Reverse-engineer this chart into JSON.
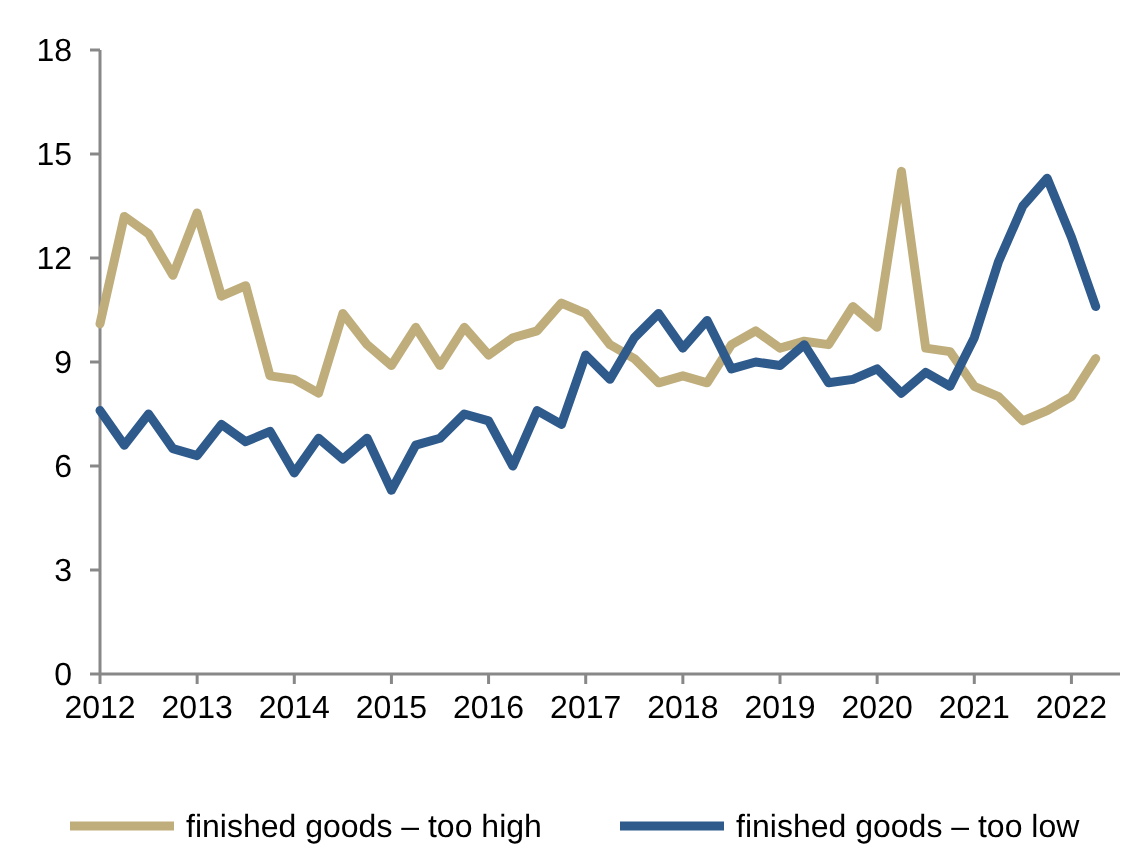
{
  "chart_data": {
    "type": "line",
    "x": [
      2012,
      2012.25,
      2012.5,
      2012.75,
      2013,
      2013.25,
      2013.5,
      2013.75,
      2014,
      2014.25,
      2014.5,
      2014.75,
      2015,
      2015.25,
      2015.5,
      2015.75,
      2016,
      2016.25,
      2016.5,
      2016.75,
      2017,
      2017.25,
      2017.5,
      2017.75,
      2018,
      2018.25,
      2018.5,
      2018.75,
      2019,
      2019.25,
      2019.5,
      2019.75,
      2020,
      2020.25,
      2020.5,
      2020.75,
      2021,
      2021.25,
      2021.5,
      2021.75,
      2022,
      2022.25
    ],
    "series": [
      {
        "name": "finished goods – too high",
        "color": "#bfae7c",
        "values": [
          10.1,
          13.2,
          12.7,
          11.5,
          13.3,
          10.9,
          11.2,
          8.6,
          8.5,
          8.1,
          10.4,
          9.5,
          8.9,
          10.0,
          8.9,
          10.0,
          9.2,
          9.7,
          9.9,
          10.7,
          10.4,
          9.5,
          9.1,
          8.4,
          8.6,
          8.4,
          9.5,
          9.9,
          9.4,
          9.6,
          9.5,
          10.6,
          10.0,
          14.5,
          9.4,
          9.3,
          8.3,
          8.0,
          7.3,
          7.6,
          8.0,
          9.1
        ]
      },
      {
        "name": "finished goods – too low",
        "color": "#2e5a8c",
        "values": [
          7.6,
          6.6,
          7.5,
          6.5,
          6.3,
          7.2,
          6.7,
          7.0,
          5.8,
          6.8,
          6.2,
          6.8,
          5.3,
          6.6,
          6.8,
          7.5,
          7.3,
          6.0,
          7.6,
          7.2,
          9.2,
          8.5,
          9.7,
          10.4,
          9.4,
          10.2,
          8.8,
          9.0,
          8.9,
          9.5,
          8.4,
          8.5,
          8.8,
          8.1,
          8.7,
          8.3,
          9.7,
          11.9,
          13.5,
          14.3,
          12.6,
          10.6
        ]
      }
    ],
    "xlim": [
      2012,
      2022.5
    ],
    "xticks": [
      2012,
      2013,
      2014,
      2015,
      2016,
      2017,
      2018,
      2019,
      2020,
      2021,
      2022
    ],
    "ylim": [
      0,
      18
    ],
    "yticks": [
      0,
      3,
      6,
      9,
      12,
      15,
      18
    ],
    "grid": false,
    "legend": "bottom",
    "marker": "none",
    "line_style": "solid"
  }
}
